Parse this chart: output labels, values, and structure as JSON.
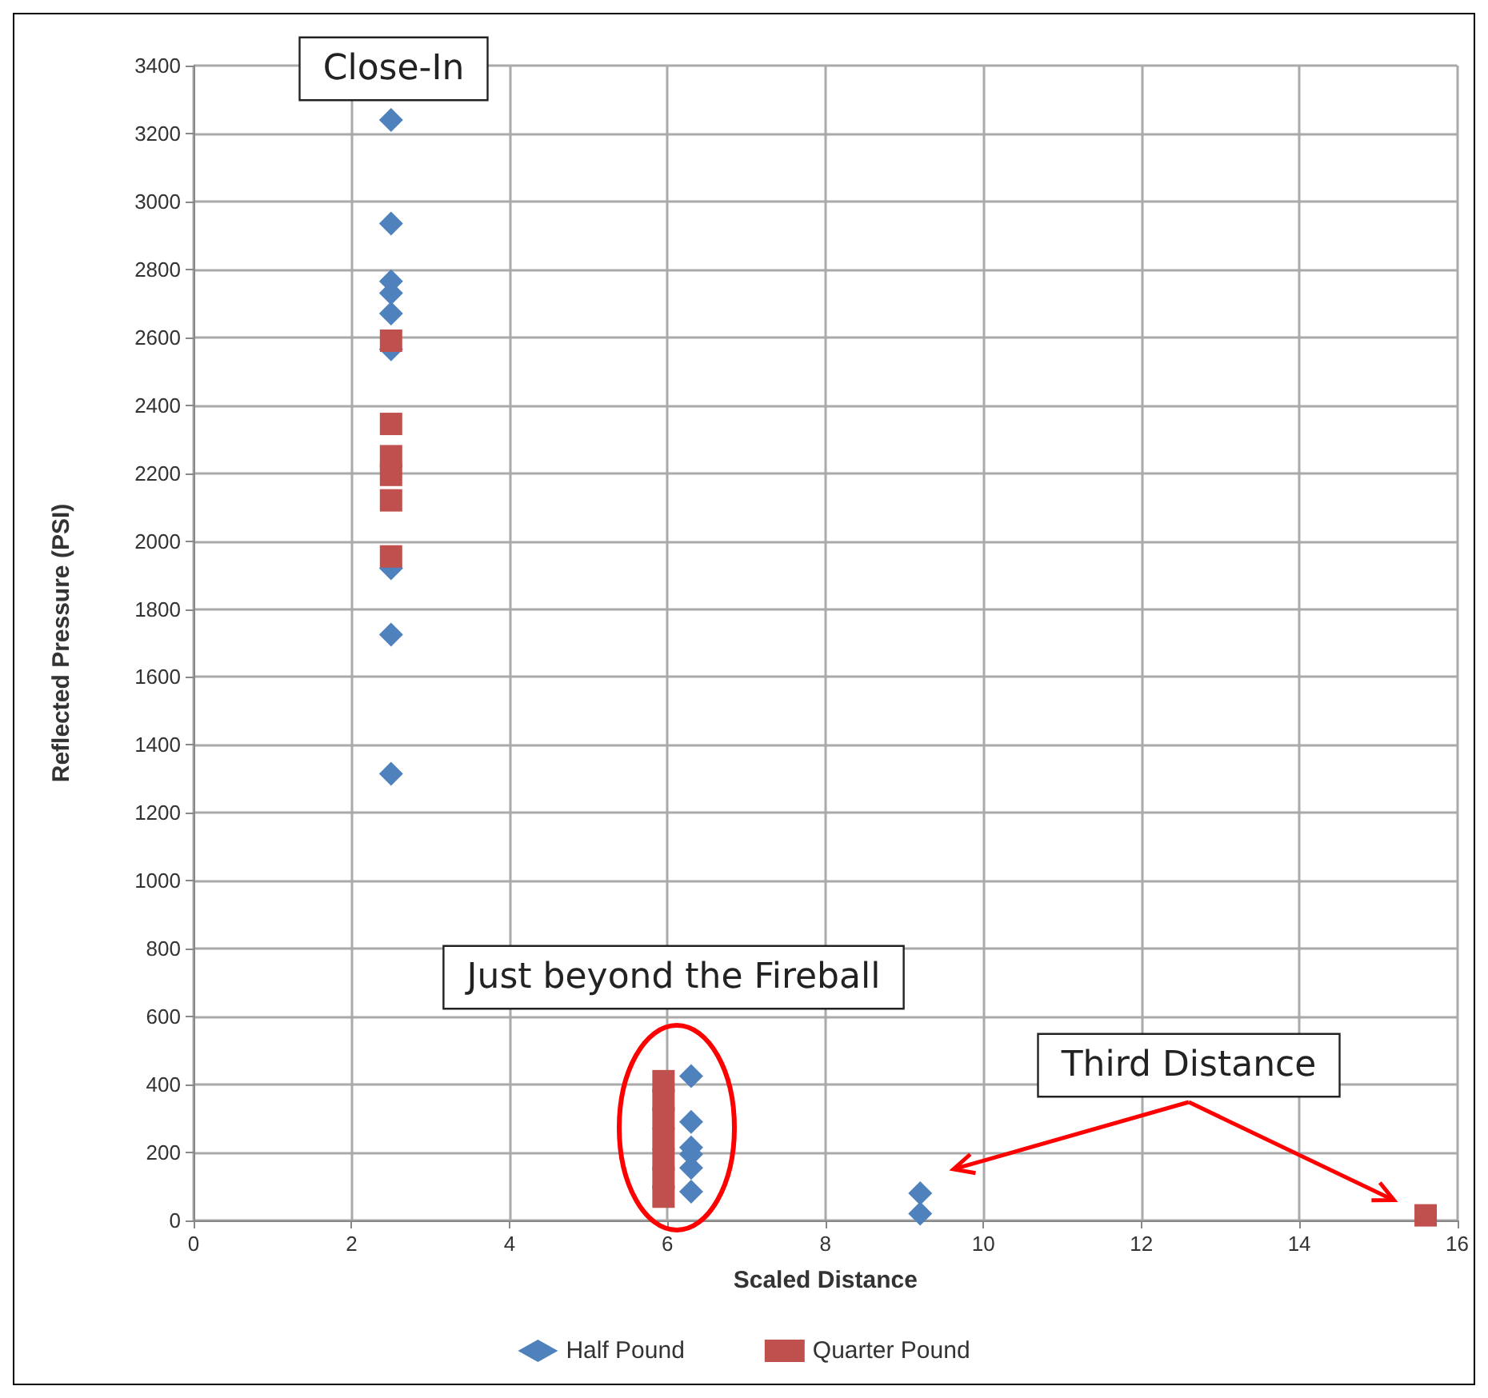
{
  "chart_data": {
    "type": "scatter",
    "xlabel": "Scaled Distance",
    "ylabel": "Reflected Pressure (PSI)",
    "xlim": [
      0,
      16
    ],
    "xticks": [
      0,
      2,
      4,
      6,
      8,
      10,
      12,
      14,
      16
    ],
    "ylim": [
      0,
      3400
    ],
    "yticks": [
      0,
      200,
      400,
      600,
      800,
      1000,
      1200,
      1400,
      1600,
      1800,
      2000,
      2200,
      2400,
      2600,
      2800,
      3000,
      3200,
      3400
    ],
    "grid": true,
    "legend": "bottom",
    "series": [
      {
        "name": "Half Pound",
        "color": "#4f81bd",
        "marker": "diamond",
        "x": [
          2.5,
          2.5,
          2.5,
          2.5,
          2.5,
          2.5,
          2.5,
          2.5,
          2.5,
          6.3,
          6.3,
          6.3,
          6.3,
          6.3,
          6.3,
          9.2,
          9.2
        ],
        "values": [
          3240,
          2935,
          2765,
          2730,
          2670,
          2565,
          1920,
          1725,
          1315,
          425,
          290,
          215,
          195,
          155,
          85,
          80,
          20
        ]
      },
      {
        "name": "Quarter Pound",
        "color": "#c0504d",
        "marker": "square",
        "x": [
          2.5,
          2.5,
          2.5,
          2.5,
          2.5,
          2.5,
          5.95,
          5.95,
          5.95,
          5.95,
          5.95,
          5.95,
          5.95,
          15.6
        ],
        "values": [
          2590,
          2345,
          2250,
          2195,
          2120,
          1955,
          410,
          355,
          300,
          240,
          180,
          125,
          70,
          15
        ]
      }
    ],
    "annotations": [
      "Close-In",
      "Just beyond the Fireball",
      "Third Distance"
    ]
  }
}
